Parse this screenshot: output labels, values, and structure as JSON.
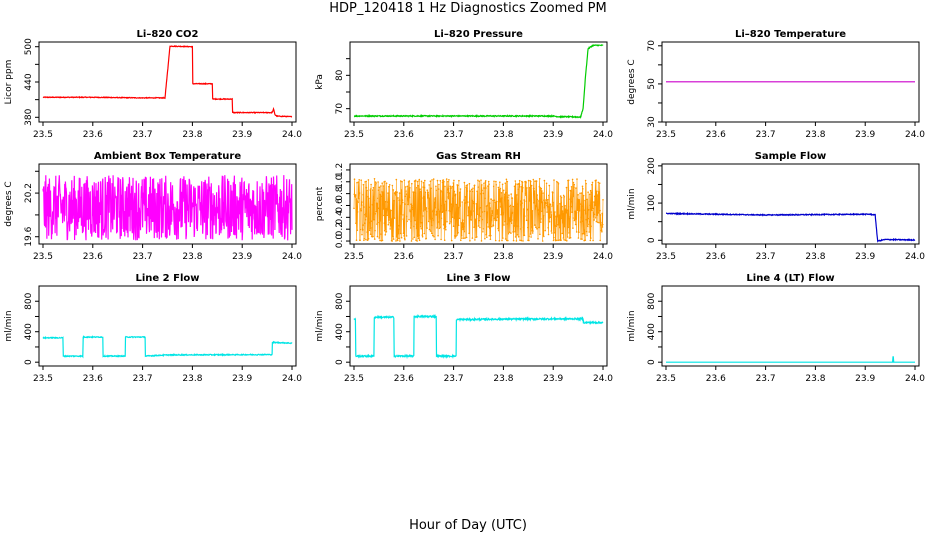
{
  "figure": {
    "title": "HDP_120418  1 Hz Diagnostics Zoomed PM",
    "xlabel": "Hour of Day (UTC)"
  },
  "chart_data": [
    {
      "type": "line",
      "title": "Li–820 CO2",
      "ylabel": "Licor ppm",
      "color": "#ff0000",
      "xlim": [
        23.5,
        24.0
      ],
      "ylim": [
        372,
        508
      ],
      "xticks": [
        "23.5",
        "23.6",
        "23.7",
        "23.8",
        "23.9",
        "24.0"
      ],
      "yticks": [
        "380",
        "440",
        "500"
      ],
      "yticks_minor": [
        410,
        470
      ],
      "series": [
        {
          "x": [
            23.5,
            23.6,
            23.7,
            23.745,
            23.755,
            23.8,
            23.8,
            23.84,
            23.84,
            23.88,
            23.88,
            23.96,
            23.963,
            23.966,
            23.97,
            24.0
          ],
          "y": [
            414,
            414,
            413,
            413,
            501,
            500,
            437,
            437,
            411,
            411,
            388,
            388,
            394,
            384,
            382,
            381
          ]
        }
      ],
      "noise": 0.6
    },
    {
      "type": "line",
      "title": "Li–820 Pressure",
      "ylabel": "kPa",
      "color": "#00cc00",
      "xlim": [
        23.5,
        24.0
      ],
      "ylim": [
        66,
        90
      ],
      "xticks": [
        "23.5",
        "23.6",
        "23.7",
        "23.8",
        "23.9",
        "24.0"
      ],
      "yticks": [
        "70",
        "80"
      ],
      "yticks_minor": [
        75,
        85
      ],
      "series": [
        {
          "x": [
            23.5,
            23.9,
            23.91,
            23.955,
            23.96,
            23.965,
            23.97,
            23.98,
            24.0
          ],
          "y": [
            67.8,
            67.8,
            67.6,
            67.5,
            70,
            80,
            88,
            89,
            89
          ]
        }
      ],
      "noise": 0.15
    },
    {
      "type": "line",
      "title": "Li–820 Temperature",
      "ylabel": "degrees C",
      "color": "#cc00cc",
      "xlim": [
        23.5,
        24.0
      ],
      "ylim": [
        30,
        72
      ],
      "xticks": [
        "23.5",
        "23.6",
        "23.7",
        "23.8",
        "23.9",
        "24.0"
      ],
      "yticks": [
        "30",
        "50",
        "70"
      ],
      "yticks_minor": [
        40,
        60
      ],
      "series": [
        {
          "x": [
            23.5,
            24.0
          ],
          "y": [
            51.1,
            51.1
          ]
        }
      ],
      "noise": 0
    },
    {
      "type": "line",
      "title": "Ambient Box Temperature",
      "ylabel": "degrees C",
      "color": "#ff00ff",
      "xlim": [
        23.5,
        24.0
      ],
      "ylim": [
        19.5,
        20.6
      ],
      "xticks": [
        "23.5",
        "23.6",
        "23.7",
        "23.8",
        "23.9",
        "24.0"
      ],
      "yticks": [
        "19.6",
        "20.2"
      ],
      "yticks_minor": [
        19.9,
        20.5
      ],
      "series": [
        {
          "x": [
            23.5,
            24.0
          ],
          "y": [
            20.0,
            20.0
          ]
        }
      ],
      "noise": 0.45
    },
    {
      "type": "scatter",
      "title": "Gas Stream RH",
      "ylabel": "percent",
      "color": "#ff9900",
      "xlim": [
        23.5,
        24.0
      ],
      "ylim": [
        -0.05,
        1.3
      ],
      "xticks": [
        "23.5",
        "23.6",
        "23.7",
        "23.8",
        "23.9",
        "24.0"
      ],
      "yticks": [
        "0.0",
        "0.2",
        "0.4",
        "0.6",
        "0.8",
        "1.0",
        "1.2"
      ],
      "series": [
        {
          "x": [
            23.5,
            24.0
          ],
          "y": [
            0.5,
            0.5
          ]
        }
      ],
      "noise": 0.55
    },
    {
      "type": "line",
      "title": "Sample Flow",
      "ylabel": "ml/min",
      "color": "#0000cc",
      "xlim": [
        23.5,
        24.0
      ],
      "ylim": [
        -10,
        205
      ],
      "xticks": [
        "23.5",
        "23.6",
        "23.7",
        "23.8",
        "23.9",
        "24.0"
      ],
      "yticks": [
        "0",
        "100",
        "200"
      ],
      "yticks_minor": [
        50,
        150
      ],
      "series": [
        {
          "x": [
            23.5,
            23.6,
            23.7,
            23.8,
            23.91,
            23.92,
            23.925,
            23.94,
            24.0
          ],
          "y": [
            72,
            70,
            68,
            69,
            70,
            68,
            -2,
            2,
            1
          ]
        }
      ],
      "noise": 1.2
    },
    {
      "type": "line",
      "title": "Line 2 Flow",
      "ylabel": "ml/min",
      "color": "#00e5e5",
      "xlim": [
        23.5,
        24.0
      ],
      "ylim": [
        -50,
        1000
      ],
      "xticks": [
        "23.5",
        "23.6",
        "23.7",
        "23.8",
        "23.9",
        "24.0"
      ],
      "yticks": [
        "0",
        "400",
        "800"
      ],
      "yticks_minor": [
        200,
        600
      ],
      "series": [
        {
          "x": [
            23.5,
            23.5,
            23.54,
            23.54,
            23.58,
            23.58,
            23.62,
            23.62,
            23.665,
            23.665,
            23.705,
            23.705,
            23.75,
            23.96,
            23.96,
            24.0
          ],
          "y": [
            80,
            320,
            320,
            80,
            80,
            330,
            330,
            80,
            80,
            330,
            330,
            80,
            95,
            100,
            260,
            250
          ]
        }
      ],
      "noise": 6
    },
    {
      "type": "line",
      "title": "Line 3 Flow",
      "ylabel": "ml/min",
      "color": "#00e5e5",
      "xlim": [
        23.5,
        24.0
      ],
      "ylim": [
        -50,
        1000
      ],
      "xticks": [
        "23.5",
        "23.6",
        "23.7",
        "23.8",
        "23.9",
        "24.0"
      ],
      "yticks": [
        "0",
        "400",
        "800"
      ],
      "yticks_minor": [
        200,
        600
      ],
      "series": [
        {
          "x": [
            23.5,
            23.5,
            23.503,
            23.503,
            23.54,
            23.54,
            23.58,
            23.58,
            23.62,
            23.62,
            23.665,
            23.665,
            23.705,
            23.705,
            23.8,
            23.96,
            23.96,
            24.0
          ],
          "y": [
            80,
            560,
            560,
            80,
            80,
            590,
            590,
            80,
            80,
            600,
            600,
            80,
            80,
            560,
            565,
            570,
            520,
            520
          ]
        }
      ],
      "noise": 10
    },
    {
      "type": "line",
      "title": "Line 4 (LT) Flow",
      "ylabel": "ml/min",
      "color": "#00e5e5",
      "xlim": [
        23.5,
        24.0
      ],
      "ylim": [
        -50,
        1000
      ],
      "xticks": [
        "23.5",
        "23.6",
        "23.7",
        "23.8",
        "23.9",
        "24.0"
      ],
      "yticks": [
        "0",
        "400",
        "800"
      ],
      "yticks_minor": [
        200,
        600
      ],
      "series": [
        {
          "x": [
            23.5,
            23.955,
            23.955,
            23.957,
            23.957,
            24.0
          ],
          "y": [
            0,
            0,
            70,
            70,
            0,
            0
          ]
        }
      ],
      "noise": 0.5
    }
  ]
}
